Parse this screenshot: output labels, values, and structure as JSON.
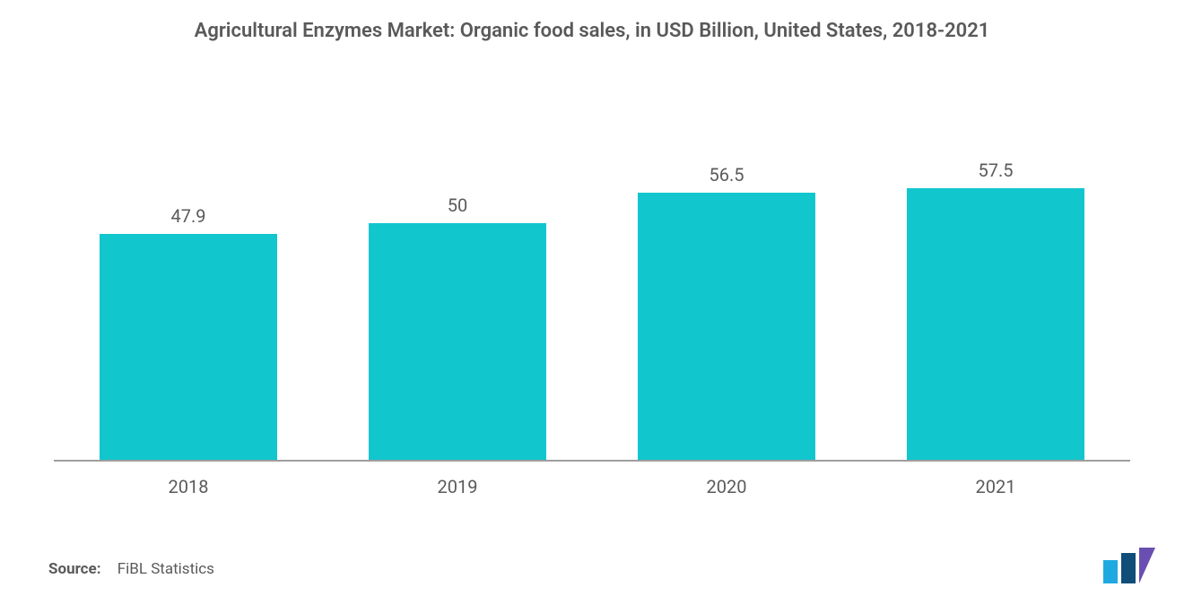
{
  "chart": {
    "type": "bar",
    "title": "Agricultural Enzymes Market: Organic food sales, in USD Billion, United States, 2018-2021",
    "title_fontsize": 22,
    "title_color": "#595959",
    "categories": [
      "2018",
      "2019",
      "2020",
      "2021"
    ],
    "values": [
      47.9,
      50,
      56.5,
      57.5
    ],
    "value_labels": [
      "47.9",
      "50",
      "56.5",
      "57.5"
    ],
    "bar_color": "#12c6cd",
    "bar_width_pct": 66,
    "ymax": 80,
    "background_color": "#ffffff",
    "baseline_color": "#9e9e9e",
    "label_color": "#5a5a5a",
    "value_label_fontsize": 20,
    "x_label_fontsize": 20
  },
  "footer": {
    "source_key": "Source:",
    "source_value": "FiBL Statistics",
    "fontsize": 17
  },
  "logo": {
    "bar1_color": "#1fa9e0",
    "bar2_color": "#104d78",
    "bar3_color": "#6a4fb3"
  }
}
